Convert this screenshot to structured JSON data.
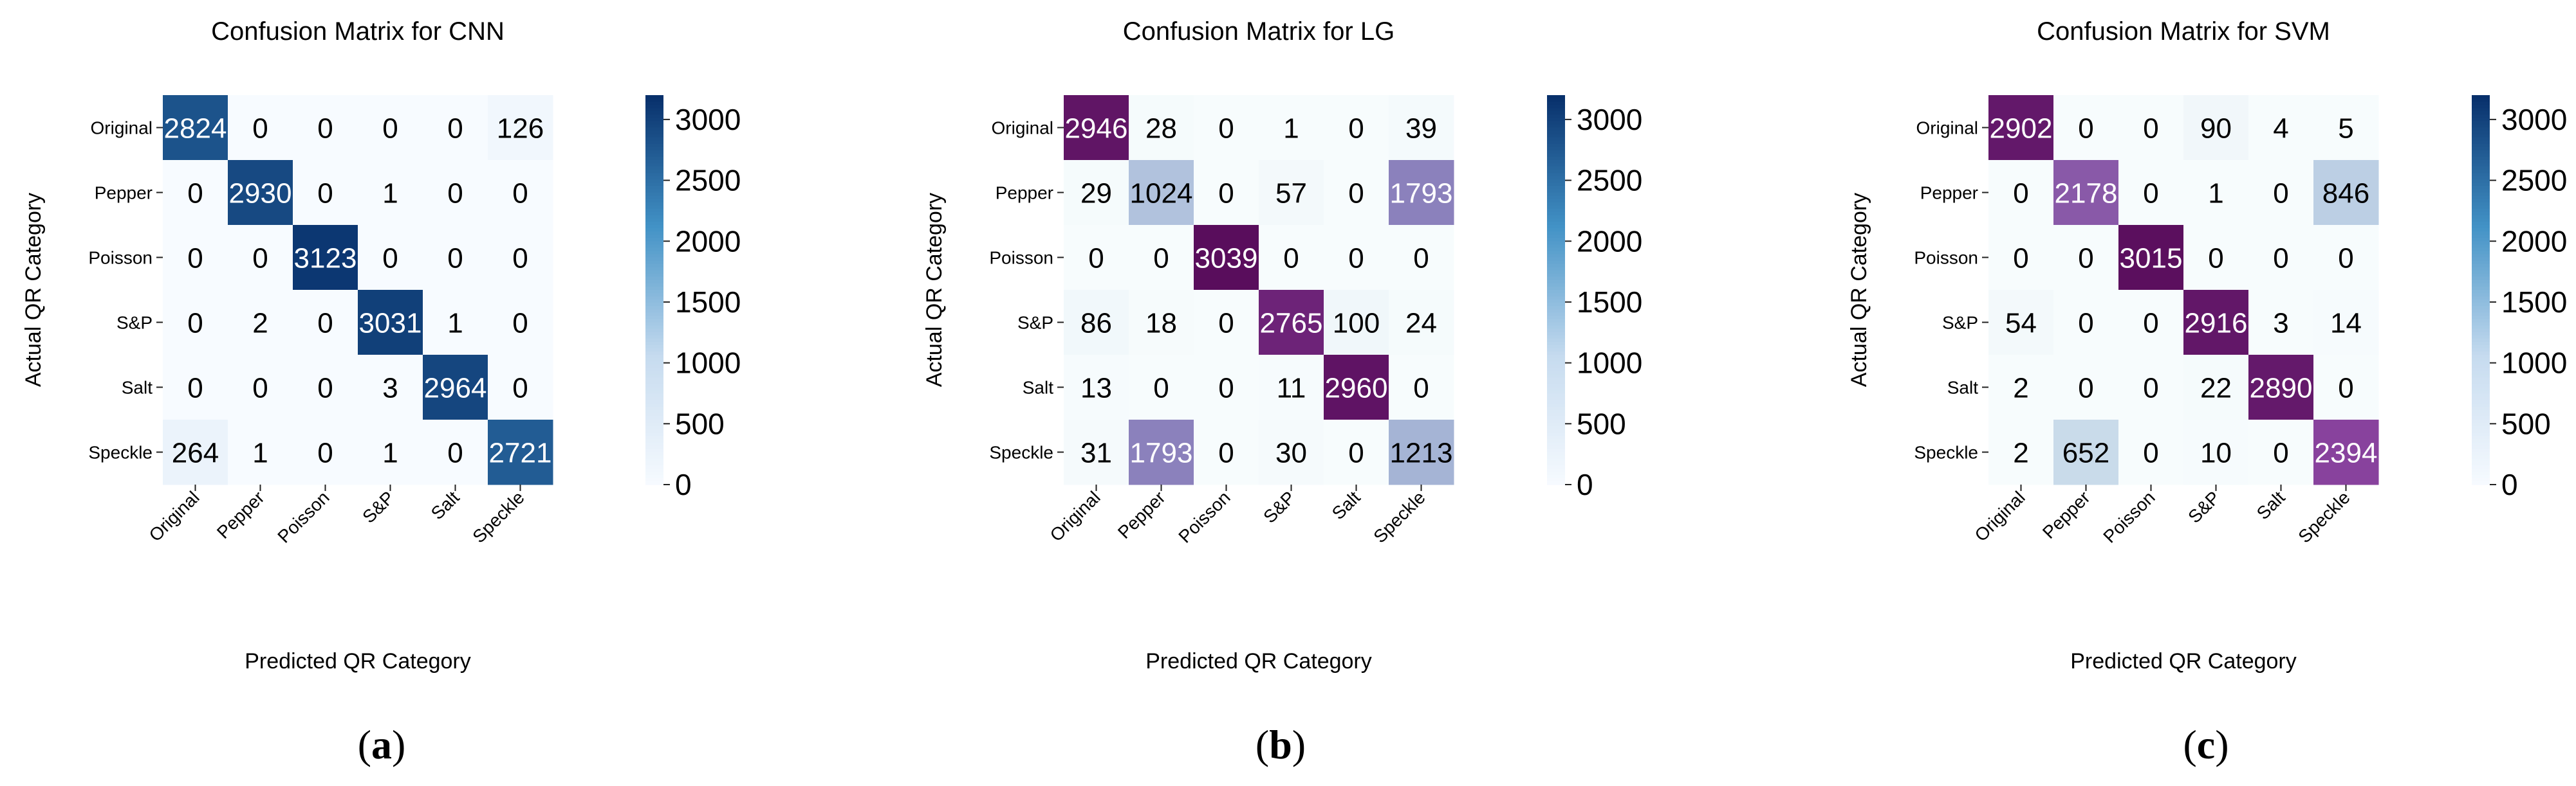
{
  "colors": {
    "low": "#f7fbff",
    "low_mid": "#c6dbef",
    "mid": "#4292c6",
    "high": "#08306b",
    "axis": "#222222",
    "text_dark": "#000000",
    "text_light": "#ffffff",
    "purple_map": [
      "#f7fcfd",
      "#bfd3e6",
      "#8c96c6",
      "#88419d",
      "#4d004b"
    ]
  },
  "chart_data": [
    {
      "type": "heatmap",
      "subfigure_label": "a",
      "title": "Confusion Matrix for CNN",
      "xlabel": "Predicted QR Category",
      "ylabel": "Actual QR Category",
      "categories": [
        "Original",
        "Pepper",
        "Poisson",
        "S&P",
        "Salt",
        "Speckle"
      ],
      "colormap": "Blues",
      "vmin": 0,
      "vmax": 3200,
      "colorbar_ticks": [
        0,
        500,
        1000,
        1500,
        2000,
        2500,
        3000
      ],
      "colorbar_tick_labels": [
        "0",
        "500",
        "1000",
        "1500",
        "2000",
        "2500",
        "3000"
      ],
      "matrix": [
        [
          2824,
          0,
          0,
          0,
          0,
          126
        ],
        [
          0,
          2930,
          0,
          1,
          0,
          0
        ],
        [
          0,
          0,
          3123,
          0,
          0,
          0
        ],
        [
          0,
          2,
          0,
          3031,
          1,
          0
        ],
        [
          0,
          0,
          0,
          3,
          2964,
          0
        ],
        [
          264,
          1,
          0,
          1,
          0,
          2721
        ]
      ],
      "cell_labels": [
        [
          "2824",
          "0",
          "0",
          "0",
          "0",
          "126"
        ],
        [
          "0",
          "2930",
          "0",
          "1",
          "0",
          "0"
        ],
        [
          "0",
          "0",
          "3123",
          "0",
          "0",
          "0"
        ],
        [
          "0",
          "2",
          "0",
          "3031",
          "1",
          "0"
        ],
        [
          "0",
          "0",
          "0",
          "3",
          "2964",
          "0"
        ],
        [
          "264",
          "1",
          "0",
          "1",
          "0",
          "2721"
        ]
      ]
    },
    {
      "type": "heatmap",
      "subfigure_label": "b",
      "title": "Confusion Matrix for LG",
      "xlabel": "Predicted QR Category",
      "ylabel": "Actual QR Category",
      "categories": [
        "Original",
        "Pepper",
        "Poisson",
        "S&P",
        "Salt",
        "Speckle"
      ],
      "colormap": "BuPu-cells / Blues-colorbar",
      "vmin": 0,
      "vmax": 3200,
      "colorbar_ticks": [
        0,
        500,
        1000,
        1500,
        2000,
        2500,
        3000
      ],
      "colorbar_tick_labels": [
        "0",
        "500",
        "1000",
        "1500",
        "2000",
        "2500",
        "3000"
      ],
      "matrix": [
        [
          2946,
          28,
          0,
          1,
          0,
          39
        ],
        [
          29,
          1024,
          0,
          57,
          0,
          1793
        ],
        [
          0,
          0,
          3039,
          0,
          0,
          0
        ],
        [
          86,
          18,
          0,
          2765,
          100,
          24
        ],
        [
          13,
          0,
          0,
          11,
          2960,
          0
        ],
        [
          31,
          1793,
          0,
          30,
          0,
          1213
        ]
      ],
      "cell_labels": [
        [
          "2946",
          "28",
          "0",
          "1",
          "0",
          "39"
        ],
        [
          "29",
          "1024",
          "0",
          "57",
          "0",
          "1793"
        ],
        [
          "0",
          "0",
          "3039",
          "0",
          "0",
          "0"
        ],
        [
          "86",
          "18",
          "0",
          "2765",
          "100",
          "24"
        ],
        [
          "13",
          "0",
          "0",
          "11",
          "2960",
          "0"
        ],
        [
          "31",
          "1793",
          "0",
          "30",
          "0",
          "1213"
        ]
      ]
    },
    {
      "type": "heatmap",
      "subfigure_label": "c",
      "title": "Confusion Matrix for SVM",
      "xlabel": "Predicted QR Category",
      "ylabel": "Actual QR Category",
      "categories": [
        "Original",
        "Pepper",
        "Poisson",
        "S&P",
        "Salt",
        "Speckle"
      ],
      "colormap": "BuPu-cells / Blues-colorbar",
      "vmin": 0,
      "vmax": 3200,
      "colorbar_ticks": [
        0,
        500,
        1000,
        1500,
        2000,
        2500,
        3000
      ],
      "colorbar_tick_labels": [
        "0",
        "500",
        "1000",
        "1500",
        "2000",
        "2500",
        "3000"
      ],
      "matrix": [
        [
          2902,
          0,
          0,
          90,
          4,
          5
        ],
        [
          0,
          2178,
          0,
          1,
          0,
          846
        ],
        [
          0,
          0,
          3015,
          0,
          0,
          0
        ],
        [
          54,
          0,
          0,
          2916,
          3,
          14
        ],
        [
          2,
          0,
          0,
          22,
          2890,
          0
        ],
        [
          2,
          652,
          0,
          10,
          0,
          2394
        ]
      ],
      "cell_labels": [
        [
          "2902",
          "0",
          "0",
          "90",
          "4",
          "5"
        ],
        [
          "0",
          "2178",
          "0",
          "1",
          "0",
          "846"
        ],
        [
          "0",
          "0",
          "3015",
          "0",
          "0",
          "0"
        ],
        [
          "54",
          "0",
          "0",
          "2916",
          "3",
          "14"
        ],
        [
          "2",
          "0",
          "0",
          "22",
          "2890",
          "0"
        ],
        [
          "2",
          "652",
          "0",
          "10",
          "0",
          "2394"
        ]
      ]
    }
  ]
}
